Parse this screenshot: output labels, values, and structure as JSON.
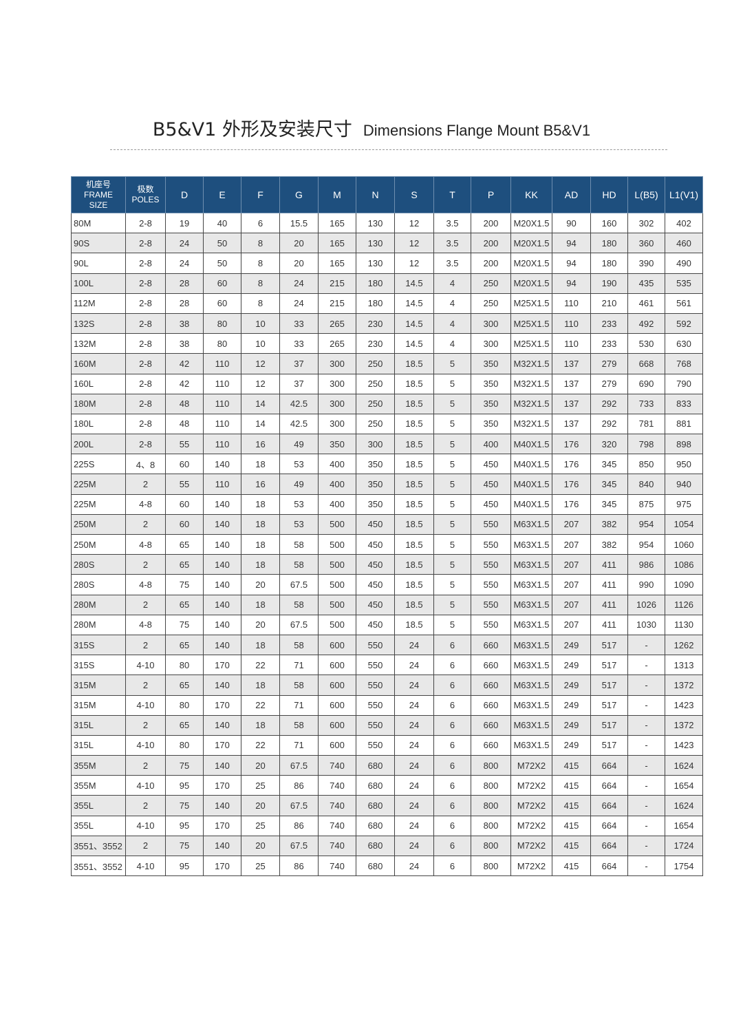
{
  "header": {
    "title_cn": "B5&V1 外形及安装尺寸",
    "title_en": "Dimensions Flange Mount B5&V1"
  },
  "table": {
    "columns": [
      [
        "机座号",
        "FRAME",
        "SIZE"
      ],
      [
        "极数",
        "POLES"
      ],
      [
        "D"
      ],
      [
        "E"
      ],
      [
        "F"
      ],
      [
        "G"
      ],
      [
        "M"
      ],
      [
        "N"
      ],
      [
        "S"
      ],
      [
        "T"
      ],
      [
        "P"
      ],
      [
        "KK"
      ],
      [
        "AD"
      ],
      [
        "HD"
      ],
      [
        "L(B5)"
      ],
      [
        "L1(V1)"
      ]
    ],
    "rows": [
      [
        "80M",
        "2-8",
        "19",
        "40",
        "6",
        "15.5",
        "165",
        "130",
        "12",
        "3.5",
        "200",
        "M20X1.5",
        "90",
        "160",
        "302",
        "402"
      ],
      [
        "90S",
        "2-8",
        "24",
        "50",
        "8",
        "20",
        "165",
        "130",
        "12",
        "3.5",
        "200",
        "M20X1.5",
        "94",
        "180",
        "360",
        "460"
      ],
      [
        "90L",
        "2-8",
        "24",
        "50",
        "8",
        "20",
        "165",
        "130",
        "12",
        "3.5",
        "200",
        "M20X1.5",
        "94",
        "180",
        "390",
        "490"
      ],
      [
        "100L",
        "2-8",
        "28",
        "60",
        "8",
        "24",
        "215",
        "180",
        "14.5",
        "4",
        "250",
        "M20X1.5",
        "94",
        "190",
        "435",
        "535"
      ],
      [
        "112M",
        "2-8",
        "28",
        "60",
        "8",
        "24",
        "215",
        "180",
        "14.5",
        "4",
        "250",
        "M25X1.5",
        "110",
        "210",
        "461",
        "561"
      ],
      [
        "132S",
        "2-8",
        "38",
        "80",
        "10",
        "33",
        "265",
        "230",
        "14.5",
        "4",
        "300",
        "M25X1.5",
        "110",
        "233",
        "492",
        "592"
      ],
      [
        "132M",
        "2-8",
        "38",
        "80",
        "10",
        "33",
        "265",
        "230",
        "14.5",
        "4",
        "300",
        "M25X1.5",
        "110",
        "233",
        "530",
        "630"
      ],
      [
        "160M",
        "2-8",
        "42",
        "110",
        "12",
        "37",
        "300",
        "250",
        "18.5",
        "5",
        "350",
        "M32X1.5",
        "137",
        "279",
        "668",
        "768"
      ],
      [
        "160L",
        "2-8",
        "42",
        "110",
        "12",
        "37",
        "300",
        "250",
        "18.5",
        "5",
        "350",
        "M32X1.5",
        "137",
        "279",
        "690",
        "790"
      ],
      [
        "180M",
        "2-8",
        "48",
        "110",
        "14",
        "42.5",
        "300",
        "250",
        "18.5",
        "5",
        "350",
        "M32X1.5",
        "137",
        "292",
        "733",
        "833"
      ],
      [
        "180L",
        "2-8",
        "48",
        "110",
        "14",
        "42.5",
        "300",
        "250",
        "18.5",
        "5",
        "350",
        "M32X1.5",
        "137",
        "292",
        "781",
        "881"
      ],
      [
        "200L",
        "2-8",
        "55",
        "110",
        "16",
        "49",
        "350",
        "300",
        "18.5",
        "5",
        "400",
        "M40X1.5",
        "176",
        "320",
        "798",
        "898"
      ],
      [
        "225S",
        "4、8",
        "60",
        "140",
        "18",
        "53",
        "400",
        "350",
        "18.5",
        "5",
        "450",
        "M40X1.5",
        "176",
        "345",
        "850",
        "950"
      ],
      [
        "225M",
        "2",
        "55",
        "110",
        "16",
        "49",
        "400",
        "350",
        "18.5",
        "5",
        "450",
        "M40X1.5",
        "176",
        "345",
        "840",
        "940"
      ],
      [
        "225M",
        "4-8",
        "60",
        "140",
        "18",
        "53",
        "400",
        "350",
        "18.5",
        "5",
        "450",
        "M40X1.5",
        "176",
        "345",
        "875",
        "975"
      ],
      [
        "250M",
        "2",
        "60",
        "140",
        "18",
        "53",
        "500",
        "450",
        "18.5",
        "5",
        "550",
        "M63X1.5",
        "207",
        "382",
        "954",
        "1054"
      ],
      [
        "250M",
        "4-8",
        "65",
        "140",
        "18",
        "58",
        "500",
        "450",
        "18.5",
        "5",
        "550",
        "M63X1.5",
        "207",
        "382",
        "954",
        "1060"
      ],
      [
        "280S",
        "2",
        "65",
        "140",
        "18",
        "58",
        "500",
        "450",
        "18.5",
        "5",
        "550",
        "M63X1.5",
        "207",
        "411",
        "986",
        "1086"
      ],
      [
        "280S",
        "4-8",
        "75",
        "140",
        "20",
        "67.5",
        "500",
        "450",
        "18.5",
        "5",
        "550",
        "M63X1.5",
        "207",
        "411",
        "990",
        "1090"
      ],
      [
        "280M",
        "2",
        "65",
        "140",
        "18",
        "58",
        "500",
        "450",
        "18.5",
        "5",
        "550",
        "M63X1.5",
        "207",
        "411",
        "1026",
        "1126"
      ],
      [
        "280M",
        "4-8",
        "75",
        "140",
        "20",
        "67.5",
        "500",
        "450",
        "18.5",
        "5",
        "550",
        "M63X1.5",
        "207",
        "411",
        "1030",
        "1130"
      ],
      [
        "315S",
        "2",
        "65",
        "140",
        "18",
        "58",
        "600",
        "550",
        "24",
        "6",
        "660",
        "M63X1.5",
        "249",
        "517",
        "-",
        "1262"
      ],
      [
        "315S",
        "4-10",
        "80",
        "170",
        "22",
        "71",
        "600",
        "550",
        "24",
        "6",
        "660",
        "M63X1.5",
        "249",
        "517",
        "-",
        "1313"
      ],
      [
        "315M",
        "2",
        "65",
        "140",
        "18",
        "58",
        "600",
        "550",
        "24",
        "6",
        "660",
        "M63X1.5",
        "249",
        "517",
        "-",
        "1372"
      ],
      [
        "315M",
        "4-10",
        "80",
        "170",
        "22",
        "71",
        "600",
        "550",
        "24",
        "6",
        "660",
        "M63X1.5",
        "249",
        "517",
        "-",
        "1423"
      ],
      [
        "315L",
        "2",
        "65",
        "140",
        "18",
        "58",
        "600",
        "550",
        "24",
        "6",
        "660",
        "M63X1.5",
        "249",
        "517",
        "-",
        "1372"
      ],
      [
        "315L",
        "4-10",
        "80",
        "170",
        "22",
        "71",
        "600",
        "550",
        "24",
        "6",
        "660",
        "M63X1.5",
        "249",
        "517",
        "-",
        "1423"
      ],
      [
        "355M",
        "2",
        "75",
        "140",
        "20",
        "67.5",
        "740",
        "680",
        "24",
        "6",
        "800",
        "M72X2",
        "415",
        "664",
        "-",
        "1624"
      ],
      [
        "355M",
        "4-10",
        "95",
        "170",
        "25",
        "86",
        "740",
        "680",
        "24",
        "6",
        "800",
        "M72X2",
        "415",
        "664",
        "-",
        "1654"
      ],
      [
        "355L",
        "2",
        "75",
        "140",
        "20",
        "67.5",
        "740",
        "680",
        "24",
        "6",
        "800",
        "M72X2",
        "415",
        "664",
        "-",
        "1624"
      ],
      [
        "355L",
        "4-10",
        "95",
        "170",
        "25",
        "86",
        "740",
        "680",
        "24",
        "6",
        "800",
        "M72X2",
        "415",
        "664",
        "-",
        "1654"
      ],
      [
        "3551、3552",
        "2",
        "75",
        "140",
        "20",
        "67.5",
        "740",
        "680",
        "24",
        "6",
        "800",
        "M72X2",
        "415",
        "664",
        "-",
        "1724"
      ],
      [
        "3551、3552",
        "4-10",
        "95",
        "170",
        "25",
        "86",
        "740",
        "680",
        "24",
        "6",
        "800",
        "M72X2",
        "415",
        "664",
        "-",
        "1754"
      ]
    ]
  }
}
